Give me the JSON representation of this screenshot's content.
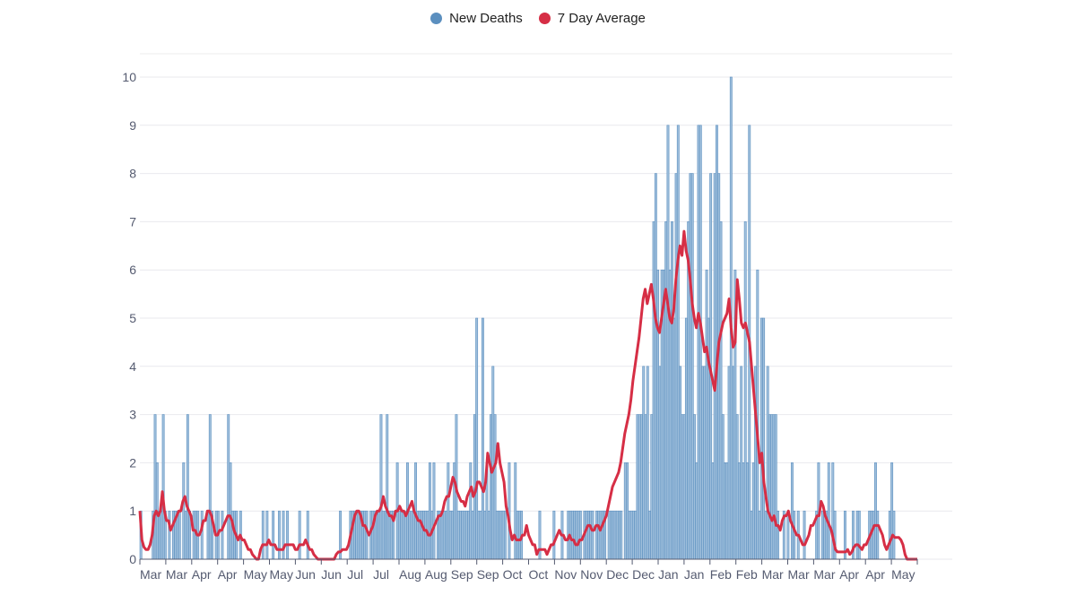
{
  "chart_data": {
    "type": "bar",
    "title": "",
    "xlabel": "",
    "ylabel": "",
    "ylim": [
      0,
      10
    ],
    "yticks": [
      0,
      1,
      2,
      3,
      4,
      5,
      6,
      7,
      8,
      9,
      10
    ],
    "grid": true,
    "legend_position": "top-center",
    "x_tick_labels": [
      "Mar",
      "Mar",
      "Apr",
      "Apr",
      "May",
      "May",
      "Jun",
      "Jun",
      "Jul",
      "Jul",
      "Aug",
      "Aug",
      "Sep",
      "Sep",
      "Oct",
      "Oct",
      "Nov",
      "Nov",
      "Dec",
      "Dec",
      "Jan",
      "Jan",
      "Feb",
      "Feb",
      "Mar",
      "Mar",
      "Mar",
      "Apr",
      "Apr",
      "May"
    ],
    "series": [
      {
        "name": "New Deaths",
        "type": "bar",
        "color": "#5b8fbf",
        "values": [
          1,
          0,
          0,
          0,
          0,
          0,
          1,
          3,
          2,
          1,
          1,
          3,
          1,
          0,
          1,
          0,
          1,
          1,
          1,
          1,
          0,
          2,
          1,
          3,
          1,
          0,
          1,
          1,
          1,
          0,
          1,
          0,
          0,
          1,
          3,
          1,
          0,
          1,
          1,
          0,
          1,
          0,
          0,
          3,
          2,
          1,
          1,
          1,
          0,
          1,
          0,
          0,
          0,
          0,
          0,
          0,
          0,
          0,
          0,
          0,
          1,
          0,
          1,
          0,
          0,
          1,
          0,
          0,
          1,
          0,
          1,
          0,
          1,
          0,
          0,
          0,
          0,
          0,
          1,
          0,
          0,
          0,
          1,
          0,
          0,
          0,
          0,
          0,
          0,
          0,
          0,
          0,
          0,
          0,
          0,
          0,
          0,
          0,
          1,
          0,
          0,
          0,
          0,
          1,
          1,
          1,
          1,
          1,
          1,
          1,
          1,
          1,
          0,
          1,
          1,
          1,
          1,
          1,
          3,
          1,
          1,
          3,
          1,
          1,
          1,
          0,
          2,
          1,
          1,
          1,
          1,
          2,
          1,
          1,
          1,
          2,
          1,
          1,
          1,
          1,
          1,
          1,
          2,
          1,
          2,
          0,
          1,
          1,
          1,
          1,
          1,
          2,
          1,
          1,
          2,
          3,
          1,
          1,
          1,
          1,
          1,
          1,
          2,
          1,
          3,
          5,
          1,
          1,
          5,
          1,
          2,
          1,
          3,
          4,
          3,
          1,
          1,
          1,
          1,
          1,
          0,
          2,
          0,
          0,
          2,
          1,
          1,
          1,
          0,
          0,
          0,
          0,
          0,
          0,
          0,
          0,
          1,
          0,
          0,
          0,
          0,
          0,
          0,
          1,
          0,
          0,
          0,
          1,
          0,
          0,
          1,
          1,
          1,
          1,
          1,
          1,
          1,
          0,
          1,
          1,
          1,
          1,
          1,
          0,
          1,
          1,
          1,
          1,
          1,
          0,
          1,
          1,
          1,
          1,
          1,
          1,
          1,
          0,
          2,
          2,
          1,
          1,
          1,
          1,
          3,
          3,
          3,
          4,
          3,
          4,
          1,
          3,
          7,
          8,
          6,
          4,
          6,
          6,
          7,
          9,
          6,
          7,
          5,
          8,
          9,
          4,
          3,
          3,
          5,
          7,
          8,
          8,
          3,
          2,
          9,
          9,
          4,
          4,
          6,
          5,
          8,
          2,
          8,
          9,
          8,
          7,
          3,
          2,
          2,
          4,
          10,
          4,
          6,
          3,
          2,
          4,
          2,
          7,
          2,
          9,
          1,
          2,
          4,
          6,
          1,
          5,
          5,
          1,
          4,
          3,
          3,
          3,
          3,
          1,
          0,
          0,
          1,
          0,
          1,
          0,
          2,
          1,
          0,
          1,
          0,
          0,
          1,
          0,
          0,
          0,
          0,
          0,
          1,
          2,
          0,
          1,
          1,
          1,
          2,
          0,
          2,
          1,
          0,
          0,
          0,
          0,
          1,
          0,
          0,
          0,
          1,
          0,
          1,
          1,
          0,
          0,
          0,
          0,
          1,
          1,
          1,
          2,
          1,
          0,
          0,
          0,
          0,
          0,
          1,
          2,
          1,
          0,
          0,
          0,
          0,
          0,
          0,
          0,
          0,
          0,
          0,
          0
        ]
      },
      {
        "name": "7 Day Average",
        "type": "line",
        "color": "#d62e45",
        "values": [
          1,
          0.4,
          0.25,
          0.2,
          0.2,
          0.3,
          0.5,
          0.9,
          1,
          0.9,
          1,
          1.4,
          1,
          0.8,
          0.8,
          0.6,
          0.7,
          0.8,
          0.9,
          1,
          1,
          1.2,
          1.3,
          1.1,
          1,
          0.9,
          0.6,
          0.6,
          0.5,
          0.5,
          0.6,
          0.8,
          0.8,
          1,
          1,
          0.9,
          0.7,
          0.5,
          0.5,
          0.6,
          0.6,
          0.7,
          0.8,
          0.9,
          0.9,
          0.8,
          0.6,
          0.5,
          0.4,
          0.5,
          0.4,
          0.4,
          0.3,
          0.2,
          0.2,
          0.1,
          0.05,
          0,
          0,
          0.2,
          0.3,
          0.3,
          0.3,
          0.4,
          0.3,
          0.3,
          0.3,
          0.2,
          0.2,
          0.2,
          0.2,
          0.3,
          0.3,
          0.3,
          0.3,
          0.3,
          0.2,
          0.2,
          0.3,
          0.3,
          0.3,
          0.4,
          0.3,
          0.2,
          0.2,
          0.1,
          0.05,
          0,
          0,
          0,
          0,
          0,
          0,
          0,
          0,
          0,
          0.1,
          0.15,
          0.15,
          0.2,
          0.2,
          0.2,
          0.3,
          0.5,
          0.7,
          0.9,
          1,
          1,
          0.9,
          0.7,
          0.7,
          0.6,
          0.5,
          0.6,
          0.7,
          0.9,
          1,
          1,
          1.1,
          1.3,
          1.1,
          1,
          0.9,
          0.9,
          0.8,
          1,
          1,
          1.1,
          1,
          1,
          0.9,
          1,
          1.1,
          1.2,
          1,
          0.9,
          0.8,
          0.8,
          0.7,
          0.6,
          0.6,
          0.5,
          0.5,
          0.6,
          0.7,
          0.8,
          0.9,
          0.9,
          1,
          1.2,
          1.3,
          1.3,
          1.5,
          1.7,
          1.6,
          1.4,
          1.3,
          1.2,
          1.2,
          1.1,
          1.3,
          1.4,
          1.5,
          1.3,
          1.4,
          1.6,
          1.6,
          1.5,
          1.4,
          1.6,
          2.2,
          2,
          1.8,
          1.9,
          2,
          2.4,
          2,
          1.8,
          1.6,
          1.1,
          0.9,
          0.6,
          0.4,
          0.5,
          0.4,
          0.4,
          0.4,
          0.5,
          0.5,
          0.7,
          0.5,
          0.4,
          0.3,
          0.3,
          0.1,
          0.2,
          0.2,
          0.2,
          0.2,
          0.1,
          0.2,
          0.3,
          0.3,
          0.4,
          0.5,
          0.6,
          0.5,
          0.5,
          0.4,
          0.4,
          0.5,
          0.4,
          0.4,
          0.3,
          0.3,
          0.4,
          0.4,
          0.5,
          0.6,
          0.7,
          0.7,
          0.6,
          0.6,
          0.7,
          0.7,
          0.6,
          0.7,
          0.8,
          0.9,
          1.1,
          1.3,
          1.5,
          1.6,
          1.7,
          1.8,
          2,
          2.3,
          2.6,
          2.8,
          3,
          3.3,
          3.7,
          4,
          4.3,
          4.6,
          5,
          5.4,
          5.6,
          5.3,
          5.5,
          5.7,
          5.4,
          5,
          4.8,
          4.7,
          5,
          5.3,
          5.6,
          5.3,
          5,
          4.9,
          5.2,
          5.8,
          6.2,
          6.5,
          6.3,
          6.8,
          6.4,
          6.2,
          5.8,
          5.3,
          5,
          4.8,
          5.1,
          4.9,
          4.6,
          4.3,
          4.4,
          4.1,
          3.9,
          3.7,
          3.5,
          4,
          4.5,
          4.7,
          4.9,
          5,
          5.1,
          5.4,
          4.8,
          4.4,
          4.5,
          5.8,
          5.4,
          4.9,
          4.8,
          4.9,
          4.7,
          4.5,
          4,
          3.5,
          3,
          2.5,
          2,
          2.2,
          1.6,
          1.3,
          1,
          0.9,
          0.8,
          0.9,
          0.7,
          0.7,
          0.6,
          0.8,
          0.9,
          0.9,
          1,
          0.8,
          0.7,
          0.6,
          0.5,
          0.5,
          0.4,
          0.3,
          0.3,
          0.4,
          0.5,
          0.7,
          0.7,
          0.8,
          0.9,
          0.9,
          1.2,
          1.1,
          0.9,
          0.8,
          0.7,
          0.6,
          0.4,
          0.2,
          0.15,
          0.15,
          0.15,
          0.15,
          0.15,
          0.2,
          0.1,
          0.15,
          0.25,
          0.3,
          0.3,
          0.25,
          0.2,
          0.3,
          0.3,
          0.4,
          0.5,
          0.6,
          0.7,
          0.7,
          0.7,
          0.6,
          0.5,
          0.3,
          0.2,
          0.3,
          0.4,
          0.5,
          0.45,
          0.45,
          0.45,
          0.4,
          0.3,
          0.1,
          0,
          0,
          0,
          0,
          0,
          0
        ]
      }
    ]
  }
}
